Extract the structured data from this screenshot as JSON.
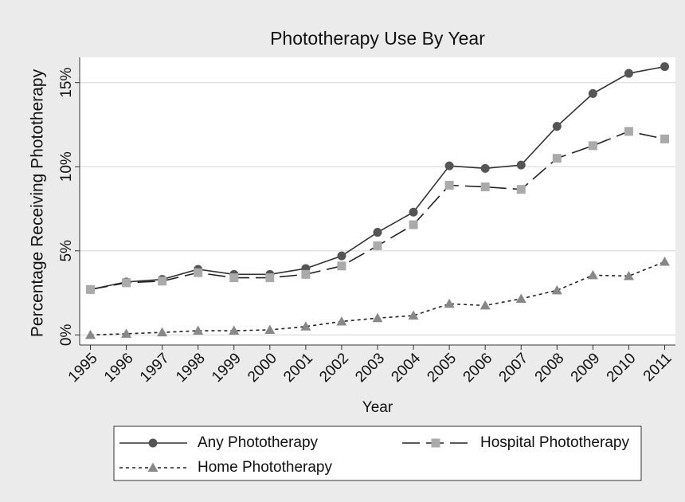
{
  "chart_data": {
    "type": "line",
    "title": "Phototherapy Use By Year",
    "x_label": "Year",
    "y_label": "Percentage Receiving Phototherapy",
    "x": [
      1995,
      1996,
      1997,
      1998,
      1999,
      2000,
      2001,
      2002,
      2003,
      2004,
      2005,
      2006,
      2007,
      2008,
      2009,
      2010,
      2011
    ],
    "xlim": [
      1994.7,
      2011.3
    ],
    "xticks": [
      1995,
      1996,
      1997,
      1998,
      1999,
      2000,
      2001,
      2002,
      2003,
      2004,
      2005,
      2006,
      2007,
      2008,
      2009,
      2010,
      2011
    ],
    "ylim": [
      -0.6,
      16.5
    ],
    "yticks": [
      {
        "value": 0,
        "label": "0%"
      },
      {
        "value": 5,
        "label": "5%"
      },
      {
        "value": 10,
        "label": "10%"
      },
      {
        "value": 15,
        "label": "15%"
      }
    ],
    "grid": true,
    "legend": "bottom",
    "series": [
      {
        "name": "Any Phototherapy",
        "color": "#555555",
        "line_color": "#333333",
        "line_style": "solid",
        "marker": "circle",
        "values": [
          2.7,
          3.15,
          3.3,
          3.9,
          3.6,
          3.6,
          3.95,
          4.7,
          6.1,
          7.3,
          10.05,
          9.9,
          10.1,
          12.4,
          14.35,
          15.55,
          15.95
        ]
      },
      {
        "name": "Hospital Phototherapy",
        "color": "#aaaaaa",
        "line_color": "#222222",
        "line_style": "dashed",
        "marker": "square",
        "values": [
          2.7,
          3.1,
          3.2,
          3.7,
          3.4,
          3.4,
          3.6,
          4.1,
          5.3,
          6.55,
          8.9,
          8.8,
          8.65,
          10.5,
          11.25,
          12.1,
          11.65
        ]
      },
      {
        "name": "Home Phototherapy",
        "color": "#888888",
        "line_color": "#222222",
        "line_style": "dotted",
        "marker": "triangle",
        "values": [
          0.0,
          0.07,
          0.15,
          0.25,
          0.25,
          0.3,
          0.5,
          0.8,
          1.0,
          1.15,
          1.85,
          1.75,
          2.15,
          2.65,
          3.55,
          3.5,
          4.35
        ]
      }
    ]
  }
}
